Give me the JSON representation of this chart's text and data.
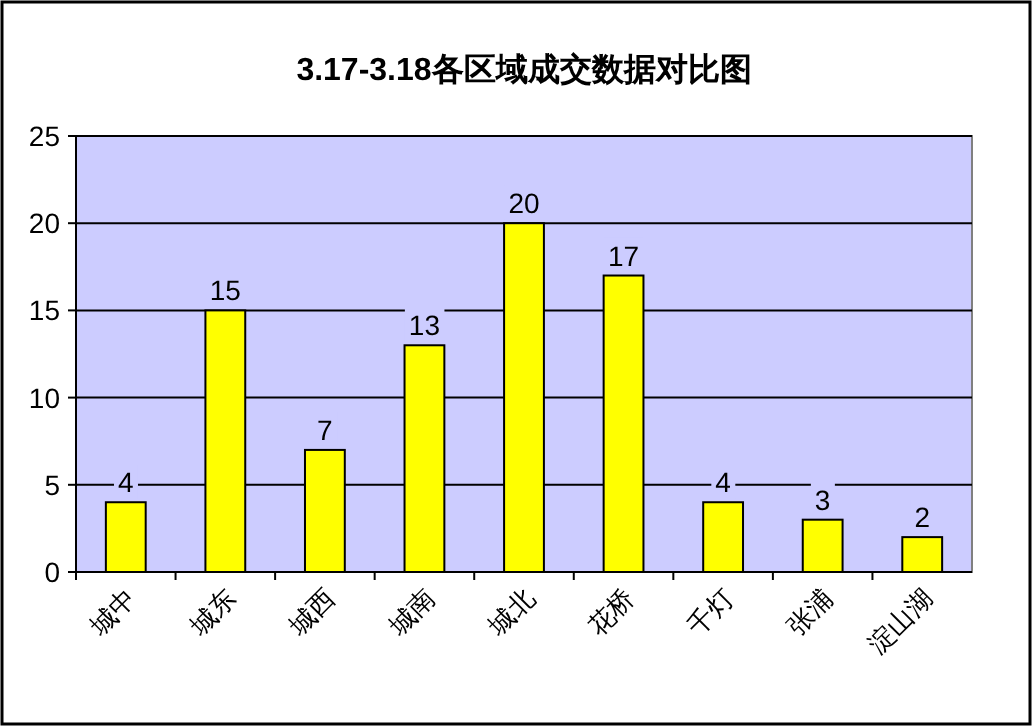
{
  "chart_data": {
    "type": "bar",
    "title": "3.17-3.18各区域成交数据对比图",
    "categories": [
      "城中",
      "城东",
      "城西",
      "城南",
      "城北",
      "花桥",
      "千灯",
      "张浦",
      "淀山湖"
    ],
    "values": [
      4,
      15,
      7,
      13,
      20,
      17,
      4,
      3,
      2
    ],
    "color": "#ffff00",
    "ylim": [
      0,
      25
    ],
    "yticks": [
      0,
      5,
      10,
      15,
      20,
      25
    ],
    "grid": "y",
    "data_labels": true
  }
}
